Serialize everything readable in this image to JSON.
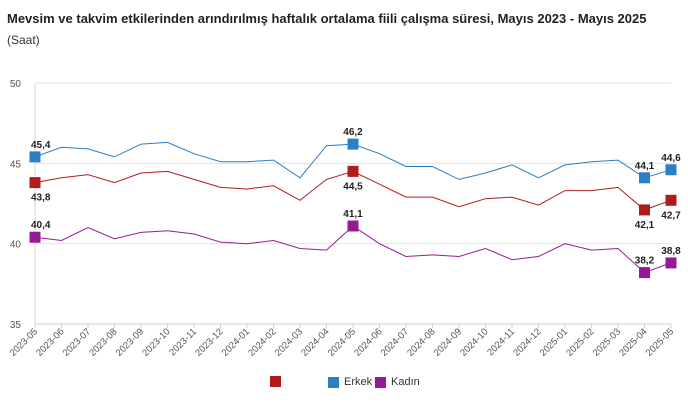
{
  "chart_data": {
    "type": "line",
    "title": "Mevsim ve takvim etkilerinden arındırılmış haftalık ortalama fiili çalışma süresi, Mayıs 2023 - Mayıs 2025",
    "subtitle": "(Saat)",
    "x": [
      "2023-05",
      "2023-06",
      "2023-07",
      "2023-08",
      "2023-09",
      "2023-10",
      "2023-11",
      "2023-12",
      "2024-01",
      "2024-02",
      "2024-03",
      "2024-04",
      "2024-05",
      "2024-06",
      "2024-07",
      "2024-08",
      "2024-09",
      "2024-10",
      "2024-11",
      "2024-12",
      "2025-01",
      "2025-02",
      "2025-03",
      "2025-04",
      "2025-05"
    ],
    "ylim": [
      35,
      50
    ],
    "yticks": [
      "35",
      "40",
      "45",
      "50"
    ],
    "grid": "horizontal",
    "legend_position": "bottom",
    "series": [
      {
        "name": "",
        "color": "#b01c1c",
        "values": [
          43.8,
          44.1,
          44.3,
          43.8,
          44.4,
          44.5,
          44.0,
          43.5,
          43.4,
          43.6,
          42.7,
          44.0,
          44.5,
          43.7,
          42.9,
          42.9,
          42.3,
          42.8,
          42.9,
          42.4,
          43.3,
          43.3,
          43.5,
          42.1,
          42.7
        ],
        "labels": [
          {
            "index": 0,
            "text": "43,8"
          },
          {
            "index": 12,
            "text": "44,5"
          },
          {
            "index": 23,
            "text": "42,1"
          },
          {
            "index": 24,
            "text": "42,7"
          }
        ]
      },
      {
        "name": "Erkek",
        "color": "#2b7fc4",
        "values": [
          45.4,
          46.0,
          45.9,
          45.4,
          46.2,
          46.3,
          45.6,
          45.1,
          45.1,
          45.2,
          44.1,
          46.1,
          46.2,
          45.6,
          44.8,
          44.8,
          44.0,
          44.4,
          44.9,
          44.1,
          44.9,
          45.1,
          45.2,
          44.1,
          44.6
        ],
        "labels": [
          {
            "index": 0,
            "text": "45,4"
          },
          {
            "index": 12,
            "text": "46,2"
          },
          {
            "index": 23,
            "text": "44,1"
          },
          {
            "index": 24,
            "text": "44,6"
          }
        ]
      },
      {
        "name": "Kadın",
        "color": "#961a96",
        "values": [
          40.4,
          40.2,
          41.0,
          40.3,
          40.7,
          40.8,
          40.6,
          40.1,
          40.0,
          40.2,
          39.7,
          39.6,
          41.1,
          40.0,
          39.2,
          39.3,
          39.2,
          39.7,
          39.0,
          39.2,
          40.0,
          39.6,
          39.7,
          38.2,
          38.8
        ],
        "labels": [
          {
            "index": 0,
            "text": "40,4"
          },
          {
            "index": 12,
            "text": "41,1"
          },
          {
            "index": 23,
            "text": "38,2"
          },
          {
            "index": 24,
            "text": "38,8"
          }
        ]
      }
    ]
  }
}
